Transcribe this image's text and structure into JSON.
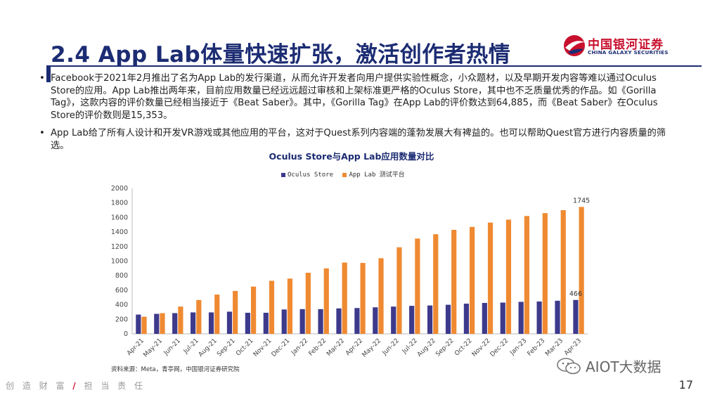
{
  "slide": {
    "title": "2.4 App Lab体量快速扩张，激活创作者热情",
    "page_number": "17",
    "brand_color": "#1c2c73",
    "accent_color": "#c8102e"
  },
  "logo": {
    "name_cn": "中国银河证券",
    "name_en": "CHINA GALAXY SECURITIES"
  },
  "bullets": [
    "Facebook于2021年2月推出了名为App Lab的发行渠道，从而允许开发者向用户提供实验性概念，小众题材，以及早期开发内容等难以通过Oculus Store的应用。App Lab推出两年来，目前应用数量已经远远超过审核和上架标准更严格的Oculus Store，其中也不乏质量优秀的作品。如《Gorilla Tag》，这款内容的评价数量已经相当接近于《Beat Saber》。其中，《Gorilla Tag》在App Lab的评价数达到64,885，而《Beat Saber》在Oculus Store的评价数则是15,353。",
    "App Lab给了所有人设计和开发VR游戏或其他应用的平台，这对于Quest系列内容端的蓬勃发展大有裨益的。也可以帮助Quest官方进行内容质量的筛选。"
  ],
  "bullet_symbol": "•",
  "chart_data": {
    "type": "bar",
    "title": "Oculus Store与App Lab应用数量对比",
    "categories": [
      "Apr-21",
      "May-21",
      "Jun-21",
      "Jul-21",
      "Aug-21",
      "Sep-21",
      "Oct-21",
      "Nov-21",
      "Dec-21",
      "Jan-22",
      "Feb-22",
      "Mar-22",
      "Apr-22",
      "May-22",
      "Jun-22",
      "Jul-22",
      "Aug-22",
      "Sep-22",
      "Oct-22",
      "Nov-22",
      "Dec-22",
      "Jan-23",
      "Feb-23",
      "Mar-23",
      "Apr-23"
    ],
    "series": [
      {
        "name": "Oculus Store",
        "color": "#3d3a8c",
        "values": [
          265,
          275,
          285,
          295,
          295,
          305,
          290,
          290,
          335,
          340,
          340,
          350,
          355,
          365,
          375,
          385,
          390,
          400,
          415,
          425,
          430,
          440,
          445,
          455,
          466
        ]
      },
      {
        "name": "App Lab 测试平台",
        "color": "#ef8a32",
        "values": [
          235,
          285,
          375,
          465,
          540,
          590,
          650,
          730,
          760,
          840,
          900,
          980,
          975,
          1040,
          1190,
          1310,
          1370,
          1430,
          1470,
          1530,
          1570,
          1620,
          1660,
          1700,
          1745
        ]
      }
    ],
    "data_labels": [
      {
        "series": "Oculus Store",
        "category": "Apr-23",
        "text": "466"
      },
      {
        "series": "App Lab 测试平台",
        "category": "Apr-23",
        "text": "1745"
      }
    ],
    "yticks": [
      "0",
      "200",
      "400",
      "600",
      "800",
      "1000",
      "1200",
      "1400",
      "1600",
      "1800",
      "2000"
    ],
    "ylim": [
      0,
      2000
    ],
    "xlabel": "",
    "ylabel": "",
    "legend_position": "top-center",
    "grid": false
  },
  "source_note": "资料来源：Meta，青亭网，中国银河证券研究院",
  "watermark": "AIOT大数据",
  "footer": {
    "slogan_left": "创 造 财 富",
    "slash": "/",
    "slogan_right": "担 当 责 任"
  }
}
